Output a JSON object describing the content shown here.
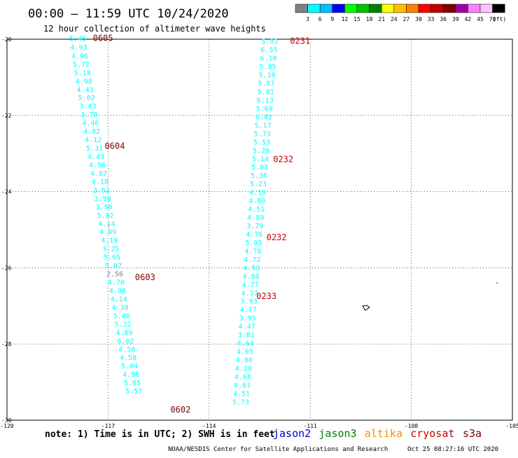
{
  "header": {
    "title": "00:00 – 11:59 UTC 10/24/2020",
    "subtitle": "12 hour collection of altimeter wave heights"
  },
  "color_scale": {
    "ticks": [
      "3",
      "6",
      "9",
      "12",
      "15",
      "18",
      "21",
      "24",
      "27",
      "30",
      "33",
      "36",
      "39",
      "42",
      "45",
      "70"
    ],
    "unit": "(ft)",
    "colors": [
      "#808080",
      "#00ffff",
      "#00bfff",
      "#0000ff",
      "#00ff00",
      "#00c000",
      "#008000",
      "#ffff00",
      "#ffc000",
      "#ff8000",
      "#ff0000",
      "#c00000",
      "#800000",
      "#a000a0",
      "#ff80ff",
      "#ffc0ff",
      "#000000"
    ]
  },
  "footer": {
    "note": "note: 1) Time is in UTC; 2) SWH is in feet",
    "satellites": [
      {
        "name": "jason2",
        "color": "#0000cc"
      },
      {
        "name": "jason3",
        "color": "#008000"
      },
      {
        "name": "altika",
        "color": "#ff8c00"
      },
      {
        "name": "cryosat",
        "color": "#cc0000"
      },
      {
        "name": "s3a",
        "color": "#800000"
      }
    ],
    "credit": "NOAA/NESDIS Center for Satellite Applications and Research",
    "timestamp": "Oct 25 08:27:16 UTC 2020"
  },
  "chart_data": {
    "type": "scatter",
    "xlim": [
      -120,
      -105
    ],
    "ylim": [
      -30,
      -20
    ],
    "x_ticks": [
      "-120",
      "-117",
      "-114",
      "-111",
      "-108",
      "-105"
    ],
    "y_ticks": [
      "-20",
      "-22",
      "-24",
      "-26",
      "-28",
      "-30"
    ],
    "grid": "dotted",
    "tracks": [
      {
        "points": [
          {
            "lon": -117.9,
            "lat": -19.97,
            "v": "5.45",
            "c": "#00ffff"
          },
          {
            "lon": -117.87,
            "lat": -20.2,
            "v": "4.93",
            "c": "#00ffff"
          },
          {
            "lon": -117.84,
            "lat": -20.43,
            "v": "4.96",
            "c": "#00ffff"
          },
          {
            "lon": -117.8,
            "lat": -20.65,
            "v": "5.72",
            "c": "#00ffff"
          },
          {
            "lon": -117.76,
            "lat": -20.87,
            "v": "5.18",
            "c": "#00ffff"
          },
          {
            "lon": -117.72,
            "lat": -21.09,
            "v": "4.98",
            "c": "#00ffff"
          },
          {
            "lon": -117.68,
            "lat": -21.31,
            "v": "4.43",
            "c": "#00ffff"
          },
          {
            "lon": -117.64,
            "lat": -21.53,
            "v": "5.02",
            "c": "#00ffff"
          },
          {
            "lon": -117.6,
            "lat": -21.75,
            "v": "3.43",
            "c": "#00ffff"
          },
          {
            "lon": -117.56,
            "lat": -21.97,
            "v": "3.79",
            "c": "#00ffff"
          },
          {
            "lon": -117.52,
            "lat": -22.19,
            "v": "4.46",
            "c": "#00ffff"
          },
          {
            "lon": -117.48,
            "lat": -22.41,
            "v": "4.82",
            "c": "#00ffff"
          },
          {
            "lon": -117.44,
            "lat": -22.63,
            "v": "4.12",
            "c": "#00ffff"
          },
          {
            "lon": -117.4,
            "lat": -22.85,
            "v": "5.31",
            "c": "#00ffff"
          },
          {
            "lon": -117.36,
            "lat": -23.07,
            "v": "4.49",
            "c": "#00ffff"
          },
          {
            "lon": -117.32,
            "lat": -23.29,
            "v": "4.56",
            "c": "#00ffff"
          },
          {
            "lon": -117.28,
            "lat": -23.51,
            "v": "4.87",
            "c": "#00ffff"
          },
          {
            "lon": -117.24,
            "lat": -23.73,
            "v": "4.18",
            "c": "#00ffff"
          },
          {
            "lon": -117.2,
            "lat": -23.95,
            "v": "3.62",
            "c": "#00ffff"
          },
          {
            "lon": -117.16,
            "lat": -24.17,
            "v": "3.99",
            "c": "#00ffff"
          },
          {
            "lon": -117.12,
            "lat": -24.39,
            "v": "3.58",
            "c": "#00ffff"
          },
          {
            "lon": -117.08,
            "lat": -24.61,
            "v": "5.02",
            "c": "#00ffff"
          },
          {
            "lon": -117.04,
            "lat": -24.83,
            "v": "4.14",
            "c": "#00ffff"
          },
          {
            "lon": -117.0,
            "lat": -25.05,
            "v": "4.99",
            "c": "#00ffff"
          },
          {
            "lon": -116.96,
            "lat": -25.27,
            "v": "4.19",
            "c": "#00ffff"
          },
          {
            "lon": -116.92,
            "lat": -25.49,
            "v": "3.25",
            "c": "#00ffff"
          },
          {
            "lon": -116.88,
            "lat": -25.71,
            "v": "5.05",
            "c": "#00ffff"
          },
          {
            "lon": -116.84,
            "lat": -25.93,
            "v": "5.02",
            "c": "#00ffff"
          },
          {
            "lon": -116.8,
            "lat": -26.15,
            "v": "2.56",
            "c": "#808080"
          },
          {
            "lon": -116.76,
            "lat": -26.37,
            "v": "4.70",
            "c": "#00ffff"
          },
          {
            "lon": -116.72,
            "lat": -26.59,
            "v": "4.98",
            "c": "#00ffff"
          },
          {
            "lon": -116.68,
            "lat": -26.81,
            "v": "4.14",
            "c": "#00ffff"
          },
          {
            "lon": -116.64,
            "lat": -27.03,
            "v": "4.38",
            "c": "#00ffff"
          },
          {
            "lon": -116.6,
            "lat": -27.25,
            "v": "5.48",
            "c": "#00ffff"
          },
          {
            "lon": -116.56,
            "lat": -27.47,
            "v": "5.22",
            "c": "#00ffff"
          },
          {
            "lon": -116.52,
            "lat": -27.69,
            "v": "4.89",
            "c": "#00ffff"
          },
          {
            "lon": -116.48,
            "lat": -27.91,
            "v": "6.02",
            "c": "#00ffff"
          },
          {
            "lon": -116.44,
            "lat": -28.13,
            "v": "4.50",
            "c": "#00ffff"
          },
          {
            "lon": -116.4,
            "lat": -28.35,
            "v": "4.58",
            "c": "#00ffff"
          },
          {
            "lon": -116.36,
            "lat": -28.57,
            "v": "5.04",
            "c": "#00ffff"
          },
          {
            "lon": -116.32,
            "lat": -28.79,
            "v": "4.96",
            "c": "#00ffff"
          },
          {
            "lon": -116.28,
            "lat": -29.01,
            "v": "5.85",
            "c": "#00ffff"
          },
          {
            "lon": -116.24,
            "lat": -29.23,
            "v": "5.57",
            "c": "#00ffff"
          }
        ],
        "time_labels": [
          {
            "text": "0605",
            "lon": -117.15,
            "lat": -19.97,
            "c": "#800000"
          },
          {
            "text": "0604",
            "lon": -116.8,
            "lat": -22.8,
            "c": "#800000"
          },
          {
            "text": "0603",
            "lon": -115.9,
            "lat": -26.25,
            "c": "#800000"
          },
          {
            "text": "0602",
            "lon": -114.85,
            "lat": -29.72,
            "c": "#800000"
          }
        ]
      },
      {
        "points": [
          {
            "lon": -112.2,
            "lat": -20.05,
            "v": "5.92",
            "c": "#00ffff"
          },
          {
            "lon": -112.22,
            "lat": -20.27,
            "v": "6.55",
            "c": "#00ffff"
          },
          {
            "lon": -112.24,
            "lat": -20.49,
            "v": "6.10",
            "c": "#00ffff"
          },
          {
            "lon": -112.26,
            "lat": -20.71,
            "v": "5.85",
            "c": "#00ffff"
          },
          {
            "lon": -112.28,
            "lat": -20.93,
            "v": "5.10",
            "c": "#00ffff"
          },
          {
            "lon": -112.3,
            "lat": -21.15,
            "v": "5.57",
            "c": "#00ffff"
          },
          {
            "lon": -112.32,
            "lat": -21.37,
            "v": "5.81",
            "c": "#00ffff"
          },
          {
            "lon": -112.34,
            "lat": -21.59,
            "v": "6.13",
            "c": "#00ffff"
          },
          {
            "lon": -112.36,
            "lat": -21.81,
            "v": "5.69",
            "c": "#00ffff"
          },
          {
            "lon": -112.38,
            "lat": -22.03,
            "v": "6.42",
            "c": "#00ffff"
          },
          {
            "lon": -112.4,
            "lat": -22.25,
            "v": "5.17",
            "c": "#00ffff"
          },
          {
            "lon": -112.42,
            "lat": -22.47,
            "v": "5.73",
            "c": "#00ffff"
          },
          {
            "lon": -112.44,
            "lat": -22.69,
            "v": "5.53",
            "c": "#00ffff"
          },
          {
            "lon": -112.46,
            "lat": -22.91,
            "v": "5.29",
            "c": "#00ffff"
          },
          {
            "lon": -112.48,
            "lat": -23.13,
            "v": "5.14",
            "c": "#00ffff"
          },
          {
            "lon": -112.5,
            "lat": -23.35,
            "v": "5.03",
            "c": "#00ffff"
          },
          {
            "lon": -112.52,
            "lat": -23.57,
            "v": "5.36",
            "c": "#00ffff"
          },
          {
            "lon": -112.54,
            "lat": -23.79,
            "v": "5.23",
            "c": "#00ffff"
          },
          {
            "lon": -112.56,
            "lat": -24.01,
            "v": "4.19",
            "c": "#00ffff"
          },
          {
            "lon": -112.58,
            "lat": -24.23,
            "v": "4.80",
            "c": "#00ffff"
          },
          {
            "lon": -112.6,
            "lat": -24.45,
            "v": "4.51",
            "c": "#00ffff"
          },
          {
            "lon": -112.62,
            "lat": -24.67,
            "v": "4.89",
            "c": "#00ffff"
          },
          {
            "lon": -112.64,
            "lat": -24.89,
            "v": "3.79",
            "c": "#00ffff"
          },
          {
            "lon": -112.66,
            "lat": -25.11,
            "v": "4.76",
            "c": "#00ffff"
          },
          {
            "lon": -112.68,
            "lat": -25.33,
            "v": "5.03",
            "c": "#00ffff"
          },
          {
            "lon": -112.7,
            "lat": -25.55,
            "v": "4.78",
            "c": "#00ffff"
          },
          {
            "lon": -112.72,
            "lat": -25.77,
            "v": "4.72",
            "c": "#00ffff"
          },
          {
            "lon": -112.74,
            "lat": -25.99,
            "v": "4.50",
            "c": "#00ffff"
          },
          {
            "lon": -112.76,
            "lat": -26.21,
            "v": "4.80",
            "c": "#00ffff"
          },
          {
            "lon": -112.78,
            "lat": -26.43,
            "v": "4.77",
            "c": "#00ffff"
          },
          {
            "lon": -112.8,
            "lat": -26.65,
            "v": "4.37",
            "c": "#00ffff"
          },
          {
            "lon": -112.82,
            "lat": -26.87,
            "v": "3.93",
            "c": "#00ffff"
          },
          {
            "lon": -112.84,
            "lat": -27.09,
            "v": "4.17",
            "c": "#00ffff"
          },
          {
            "lon": -112.86,
            "lat": -27.31,
            "v": "3.95",
            "c": "#00ffff"
          },
          {
            "lon": -112.88,
            "lat": -27.53,
            "v": "4.47",
            "c": "#00ffff"
          },
          {
            "lon": -112.9,
            "lat": -27.75,
            "v": "3.81",
            "c": "#00ffff"
          },
          {
            "lon": -112.92,
            "lat": -27.97,
            "v": "4.64",
            "c": "#00ffff"
          },
          {
            "lon": -112.94,
            "lat": -28.19,
            "v": "4.05",
            "c": "#00ffff"
          },
          {
            "lon": -112.96,
            "lat": -28.41,
            "v": "4.80",
            "c": "#00ffff"
          },
          {
            "lon": -112.98,
            "lat": -28.63,
            "v": "4.20",
            "c": "#00ffff"
          },
          {
            "lon": -113.0,
            "lat": -28.85,
            "v": "4.68",
            "c": "#00ffff"
          },
          {
            "lon": -113.02,
            "lat": -29.07,
            "v": "4.03",
            "c": "#00ffff"
          },
          {
            "lon": -113.04,
            "lat": -29.29,
            "v": "4.51",
            "c": "#00ffff"
          },
          {
            "lon": -113.06,
            "lat": -29.51,
            "v": "5.73",
            "c": "#00ffff"
          }
        ],
        "time_labels": [
          {
            "text": "0231",
            "lon": -111.3,
            "lat": -20.05,
            "c": "#cc0000"
          },
          {
            "text": "0232",
            "lon": -111.8,
            "lat": -23.15,
            "c": "#cc0000"
          },
          {
            "text": "0232",
            "lon": -112.0,
            "lat": -25.2,
            "c": "#cc0000"
          },
          {
            "text": "0233",
            "lon": -112.3,
            "lat": -26.75,
            "c": "#cc0000"
          }
        ]
      }
    ]
  }
}
